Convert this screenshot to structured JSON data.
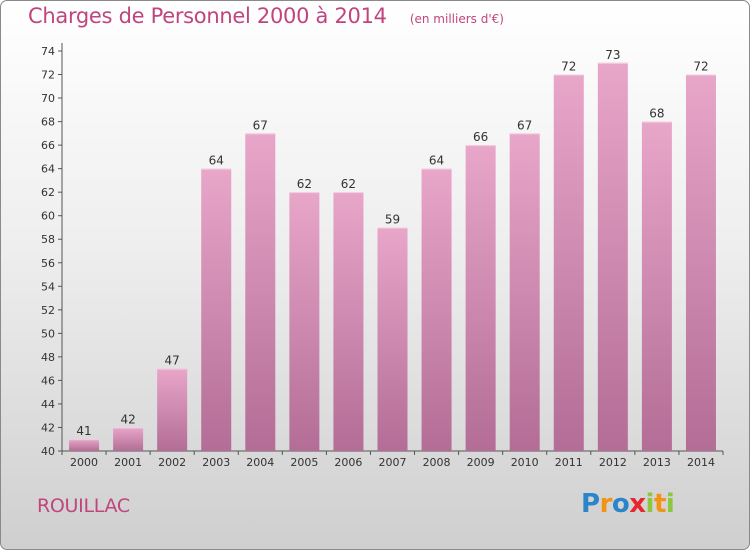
{
  "header": {
    "title": "Charges de Personnel 2000 à 2014",
    "subtitle": "(en milliers d'€)"
  },
  "footer": {
    "place": "ROUILLAC",
    "logo": "Proxiti",
    "logo_letters": [
      "P",
      "r",
      "o",
      "x",
      "i",
      "t",
      "i"
    ]
  },
  "colors": {
    "title": "#c0457f",
    "bar_top": "#e8a6c9",
    "bar_bottom": "#b36d96"
  },
  "chart_data": {
    "type": "bar",
    "title": "Charges de Personnel 2000 à 2014",
    "subtitle": "(en milliers d'€)",
    "xlabel": "",
    "ylabel": "",
    "categories": [
      "2000",
      "2001",
      "2002",
      "2003",
      "2004",
      "2005",
      "2006",
      "2007",
      "2008",
      "2009",
      "2010",
      "2011",
      "2012",
      "2013",
      "2014"
    ],
    "values": [
      41,
      42,
      47,
      64,
      67,
      62,
      62,
      59,
      64,
      66,
      67,
      72,
      73,
      68,
      72
    ],
    "ylim": [
      40,
      74
    ],
    "yticks": [
      40,
      42,
      44,
      46,
      48,
      50,
      52,
      54,
      56,
      58,
      60,
      62,
      64,
      66,
      68,
      70,
      72,
      74
    ],
    "grid": false,
    "data_labels": true
  }
}
